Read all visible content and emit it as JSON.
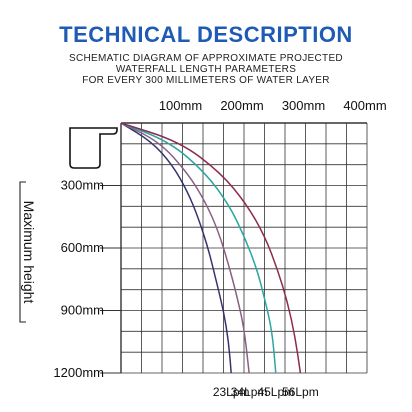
{
  "header": {
    "title": "TECHNICAL DESCRIPTION",
    "subtitle_lines": [
      "SCHEMATIC DIAGRAM OF APPROXIMATE PROJECTED",
      "WATERFALL LENGTH PARAMETERS",
      "FOR EVERY 300 MILLIMETERS OF WATER LAYER"
    ]
  },
  "chart_data": {
    "type": "line",
    "title": "",
    "ylabel": "Maximum height",
    "xlabel": "",
    "x_ticks": [
      "100mm",
      "200mm",
      "300mm",
      "400mm"
    ],
    "y_ticks": [
      "300mm",
      "600mm",
      "900mm",
      "1200mm"
    ],
    "xlim": [
      0,
      480
    ],
    "ylim": [
      0,
      1200
    ],
    "grid": true,
    "series": [
      {
        "name": "23Lpm",
        "color": "#35336e",
        "points": [
          [
            0,
            0
          ],
          [
            60,
            90
          ],
          [
            100,
            200
          ],
          [
            130,
            330
          ],
          [
            150,
            450
          ],
          [
            170,
            600
          ],
          [
            185,
            750
          ],
          [
            200,
            900
          ],
          [
            210,
            1050
          ],
          [
            215,
            1200
          ]
        ]
      },
      {
        "name": "34Lpm",
        "color": "#8a5f82",
        "points": [
          [
            0,
            0
          ],
          [
            75,
            90
          ],
          [
            130,
            240
          ],
          [
            165,
            380
          ],
          [
            190,
            520
          ],
          [
            210,
            680
          ],
          [
            225,
            820
          ],
          [
            240,
            980
          ],
          [
            250,
            1200
          ]
        ]
      },
      {
        "name": "45Lpm",
        "color": "#2aa7a0",
        "points": [
          [
            0,
            0
          ],
          [
            95,
            90
          ],
          [
            165,
            240
          ],
          [
            210,
            390
          ],
          [
            240,
            540
          ],
          [
            265,
            700
          ],
          [
            280,
            840
          ],
          [
            295,
            1000
          ],
          [
            302,
            1200
          ]
        ]
      },
      {
        "name": "56Lpm",
        "color": "#8b2c52",
        "points": [
          [
            0,
            0
          ],
          [
            115,
            90
          ],
          [
            195,
            240
          ],
          [
            245,
            390
          ],
          [
            280,
            540
          ],
          [
            305,
            700
          ],
          [
            325,
            860
          ],
          [
            340,
            1030
          ],
          [
            350,
            1200
          ]
        ]
      }
    ]
  },
  "colors": {
    "title": "#1f5bb5",
    "grid": "#333333"
  },
  "icons": {
    "spout": "waterfall-spout-icon"
  }
}
